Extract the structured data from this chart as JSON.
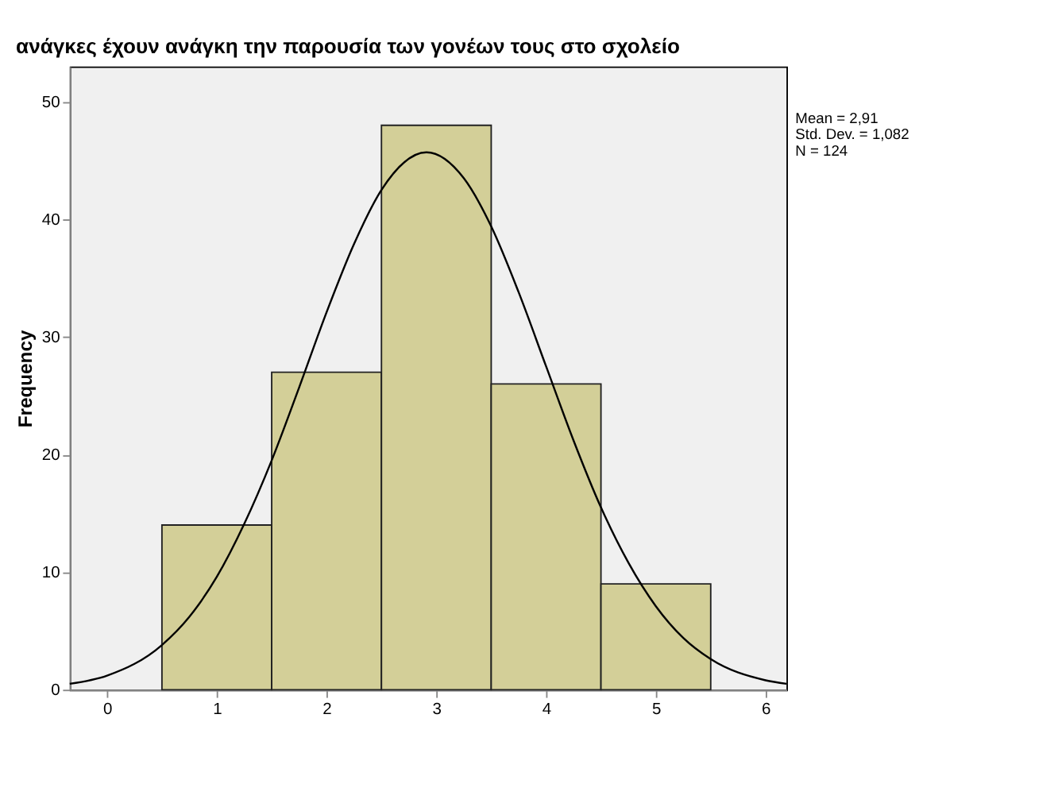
{
  "chart_data": {
    "type": "histogram",
    "title": "ανάγκες έχουν ανάγκη την παρουσία των γονέων τους στο σχολείο",
    "ylabel": "Frequency",
    "bins": [
      0.5,
      1.5,
      2.5,
      3.5,
      4.5,
      5.5
    ],
    "values": [
      14,
      27,
      48,
      26,
      9
    ],
    "color": "#d3cf98",
    "series": [
      {
        "type": "line",
        "color": "#000000",
        "x": [
          -0.34,
          0,
          0.5,
          0.75,
          1,
          1.25,
          1.5,
          1.75,
          2,
          2.25,
          2.5,
          2.91,
          3.25,
          3.5,
          3.75,
          4,
          4.25,
          4.5,
          4.75,
          5,
          5.25,
          5.5,
          6,
          6.19
        ],
        "values": [
          0.5,
          1.2,
          3.8,
          6.2,
          9.6,
          14.1,
          19.5,
          25.7,
          32.1,
          37.9,
          42.5,
          45.7,
          43.5,
          39.4,
          33.8,
          27.5,
          21.2,
          15.5,
          10.8,
          7.1,
          4.4,
          2.6,
          0.8,
          0.5
        ]
      }
    ],
    "annotations": [
      "Mean = 2,91",
      "Std. Dev. = 1,082",
      "N = 124"
    ],
    "xlim": [
      -0.34,
      6.19
    ],
    "ylim": [
      0,
      53
    ],
    "xticks": [
      0,
      1,
      2,
      3,
      4,
      5,
      6
    ],
    "yticks": [
      0,
      10,
      20,
      30,
      40,
      50
    ],
    "grid": false
  }
}
